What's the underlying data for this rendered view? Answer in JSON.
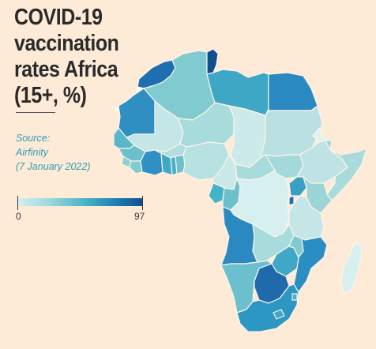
{
  "title_lines": [
    "COVID-19 vaccination",
    "rates Africa",
    "(15+, %)"
  ],
  "source": {
    "label": "Source:",
    "name": "Airfinity",
    "date": "(7 January 2022)"
  },
  "legend": {
    "min": "0",
    "max": "97",
    "color_scale": [
      "#d6efef",
      "#9fd8db",
      "#45b3c7",
      "#1d7bb5",
      "#0f4f8f"
    ]
  },
  "colors": {
    "background": "#fdebd7",
    "title": "#2a2a2a",
    "source": "#2e9bb5",
    "no_data": "#ffffff",
    "border": "#fdf4ea"
  }
}
